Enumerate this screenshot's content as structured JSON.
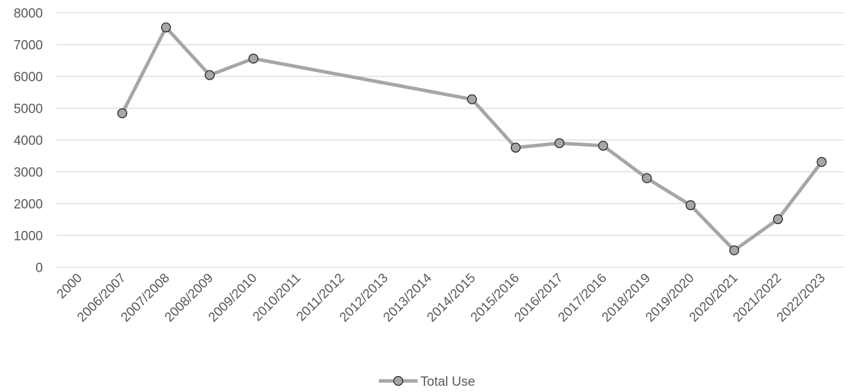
{
  "chart_data": {
    "type": "line",
    "categories": [
      "2000",
      "2006/2007",
      "2007/2008",
      "2008/2009",
      "2009/2010",
      "2010/2011",
      "2011/2012",
      "2012/2013",
      "2013/2014",
      "2014/2015",
      "2015/2016",
      "2016/2017",
      "2017/2016",
      "2018/2019",
      "2019/2020",
      "2020/2021",
      "2021/2022",
      "2022/2023"
    ],
    "series": [
      {
        "name": "Total Use",
        "values": [
          null,
          4840,
          7540,
          6040,
          6560,
          null,
          null,
          null,
          null,
          5280,
          3760,
          3900,
          3820,
          2800,
          1950,
          530,
          1510,
          3310
        ],
        "color": "#a6a6a6",
        "marker_color": "#a6a6a6"
      }
    ],
    "title": "",
    "xlabel": "",
    "ylabel": "",
    "ylim": [
      0,
      8000
    ],
    "yticks": [
      "0",
      "1000",
      "2000",
      "3000",
      "4000",
      "5000",
      "6000",
      "7000",
      "8000"
    ],
    "grid": true,
    "legend_position": "bottom"
  }
}
